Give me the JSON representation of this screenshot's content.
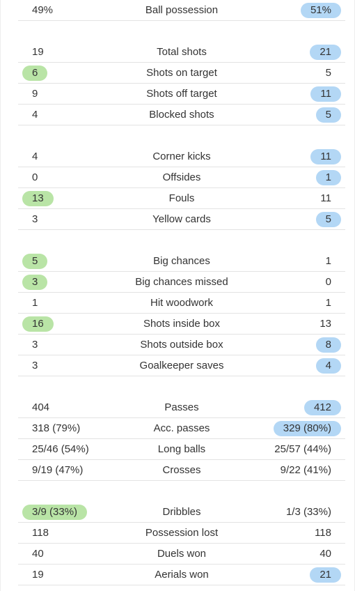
{
  "highlight_colors": {
    "home": "#b9e4a6",
    "away": "#b3d7f5"
  },
  "groups": [
    {
      "rows": [
        {
          "label": "Ball possession",
          "home": "49%",
          "away": "51%",
          "hl": "away"
        }
      ]
    },
    {
      "rows": [
        {
          "label": "Total shots",
          "home": "19",
          "away": "21",
          "hl": "away"
        },
        {
          "label": "Shots on target",
          "home": "6",
          "away": "5",
          "hl": "home"
        },
        {
          "label": "Shots off target",
          "home": "9",
          "away": "11",
          "hl": "away"
        },
        {
          "label": "Blocked shots",
          "home": "4",
          "away": "5",
          "hl": "away"
        }
      ]
    },
    {
      "rows": [
        {
          "label": "Corner kicks",
          "home": "4",
          "away": "11",
          "hl": "away"
        },
        {
          "label": "Offsides",
          "home": "0",
          "away": "1",
          "hl": "away"
        },
        {
          "label": "Fouls",
          "home": "13",
          "away": "11",
          "hl": "home"
        },
        {
          "label": "Yellow cards",
          "home": "3",
          "away": "5",
          "hl": "away"
        }
      ]
    },
    {
      "rows": [
        {
          "label": "Big chances",
          "home": "5",
          "away": "1",
          "hl": "home"
        },
        {
          "label": "Big chances missed",
          "home": "3",
          "away": "0",
          "hl": "home"
        },
        {
          "label": "Hit woodwork",
          "home": "1",
          "away": "1",
          "hl": ""
        },
        {
          "label": "Shots inside box",
          "home": "16",
          "away": "13",
          "hl": "home"
        },
        {
          "label": "Shots outside box",
          "home": "3",
          "away": "8",
          "hl": "away"
        },
        {
          "label": "Goalkeeper saves",
          "home": "3",
          "away": "4",
          "hl": "away"
        }
      ]
    },
    {
      "rows": [
        {
          "label": "Passes",
          "home": "404",
          "away": "412",
          "hl": "away"
        },
        {
          "label": "Acc. passes",
          "home": "318 (79%)",
          "away": "329 (80%)",
          "hl": "away"
        },
        {
          "label": "Long balls",
          "home": "25/46 (54%)",
          "away": "25/57 (44%)",
          "hl": ""
        },
        {
          "label": "Crosses",
          "home": "9/19 (47%)",
          "away": "9/22 (41%)",
          "hl": ""
        }
      ]
    },
    {
      "rows": [
        {
          "label": "Dribbles",
          "home": "3/9 (33%)",
          "away": "1/3 (33%)",
          "hl": "home"
        },
        {
          "label": "Possession lost",
          "home": "118",
          "away": "118",
          "hl": ""
        },
        {
          "label": "Duels won",
          "home": "40",
          "away": "40",
          "hl": ""
        },
        {
          "label": "Aerials won",
          "home": "19",
          "away": "21",
          "hl": "away"
        }
      ]
    }
  ]
}
